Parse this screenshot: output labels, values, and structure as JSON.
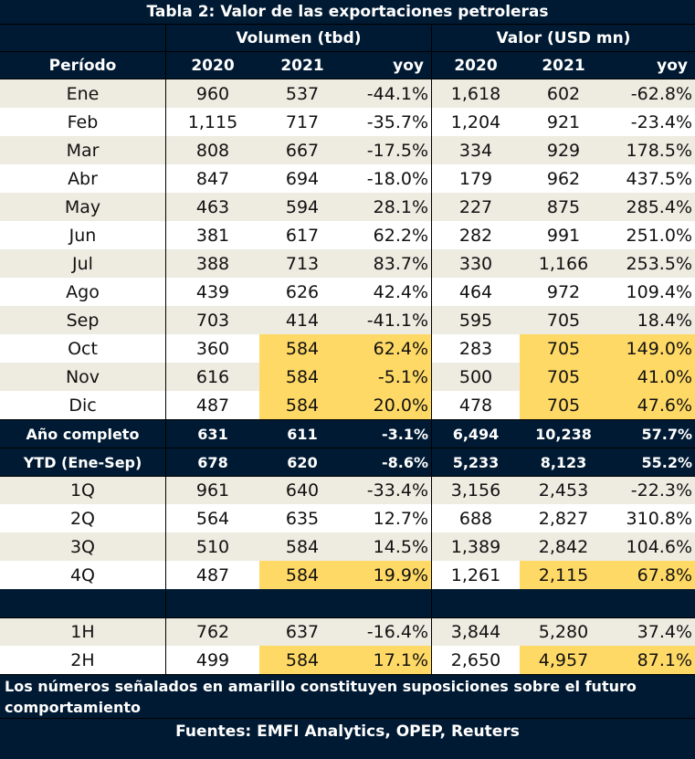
{
  "title": "Tabla 2: Valor de las exportaciones petroleras",
  "group_headers": {
    "volumen": "Volumen (tbd)",
    "valor": "Valor (USD mn)"
  },
  "column_headers": [
    "Período",
    "2020",
    "2021",
    "yoy",
    "2020",
    "2021",
    "yoy"
  ],
  "colors": {
    "header_bg": "#001a33",
    "stripe_bg": "#eeebe1",
    "highlight_yellow": "#ffd966"
  },
  "monthly_rows": [
    {
      "periodo": "Ene",
      "v2020": "960",
      "v2021": "537",
      "vyoy": "-44.1%",
      "p2020": "1,618",
      "p2021": "602",
      "pyoy": "-62.8%",
      "projected": false
    },
    {
      "periodo": "Feb",
      "v2020": "1,115",
      "v2021": "717",
      "vyoy": "-35.7%",
      "p2020": "1,204",
      "p2021": "921",
      "pyoy": "-23.4%",
      "projected": false
    },
    {
      "periodo": "Mar",
      "v2020": "808",
      "v2021": "667",
      "vyoy": "-17.5%",
      "p2020": "334",
      "p2021": "929",
      "pyoy": "178.5%",
      "projected": false
    },
    {
      "periodo": "Abr",
      "v2020": "847",
      "v2021": "694",
      "vyoy": "-18.0%",
      "p2020": "179",
      "p2021": "962",
      "pyoy": "437.5%",
      "projected": false
    },
    {
      "periodo": "May",
      "v2020": "463",
      "v2021": "594",
      "vyoy": "28.1%",
      "p2020": "227",
      "p2021": "875",
      "pyoy": "285.4%",
      "projected": false
    },
    {
      "periodo": "Jun",
      "v2020": "381",
      "v2021": "617",
      "vyoy": "62.2%",
      "p2020": "282",
      "p2021": "991",
      "pyoy": "251.0%",
      "projected": false
    },
    {
      "periodo": "Jul",
      "v2020": "388",
      "v2021": "713",
      "vyoy": "83.7%",
      "p2020": "330",
      "p2021": "1,166",
      "pyoy": "253.5%",
      "projected": false
    },
    {
      "periodo": "Ago",
      "v2020": "439",
      "v2021": "626",
      "vyoy": "42.4%",
      "p2020": "464",
      "p2021": "972",
      "pyoy": "109.4%",
      "projected": false
    },
    {
      "periodo": "Sep",
      "v2020": "703",
      "v2021": "414",
      "vyoy": "-41.1%",
      "p2020": "595",
      "p2021": "705",
      "pyoy": "18.4%",
      "projected": false
    },
    {
      "periodo": "Oct",
      "v2020": "360",
      "v2021": "584",
      "vyoy": "62.4%",
      "p2020": "283",
      "p2021": "705",
      "pyoy": "149.0%",
      "projected": true
    },
    {
      "periodo": "Nov",
      "v2020": "616",
      "v2021": "584",
      "vyoy": "-5.1%",
      "p2020": "500",
      "p2021": "705",
      "pyoy": "41.0%",
      "projected": true
    },
    {
      "periodo": "Dic",
      "v2020": "487",
      "v2021": "584",
      "vyoy": "20.0%",
      "p2020": "478",
      "p2021": "705",
      "pyoy": "47.6%",
      "projected": true
    }
  ],
  "summary_rows": [
    {
      "periodo": "Año completo",
      "v2020": "631",
      "v2021": "611",
      "vyoy": "-3.1%",
      "p2020": "6,494",
      "p2021": "10,238",
      "pyoy": "57.7%"
    },
    {
      "periodo": "YTD (Ene-Sep)",
      "v2020": "678",
      "v2021": "620",
      "vyoy": "-8.6%",
      "p2020": "5,233",
      "p2021": "8,123",
      "pyoy": "55.2%"
    }
  ],
  "quarter_rows": [
    {
      "periodo": "1Q",
      "v2020": "961",
      "v2021": "640",
      "vyoy": "-33.4%",
      "p2020": "3,156",
      "p2021": "2,453",
      "pyoy": "-22.3%",
      "projected": false
    },
    {
      "periodo": "2Q",
      "v2020": "564",
      "v2021": "635",
      "vyoy": "12.7%",
      "p2020": "688",
      "p2021": "2,827",
      "pyoy": "310.8%",
      "projected": false
    },
    {
      "periodo": "3Q",
      "v2020": "510",
      "v2021": "584",
      "vyoy": "14.5%",
      "p2020": "1,389",
      "p2021": "2,842",
      "pyoy": "104.6%",
      "projected": false
    },
    {
      "periodo": "4Q",
      "v2020": "487",
      "v2021": "584",
      "vyoy": "19.9%",
      "p2020": "1,261",
      "p2021": "2,115",
      "pyoy": "67.8%",
      "projected": true
    }
  ],
  "half_rows": [
    {
      "periodo": "1H",
      "v2020": "762",
      "v2021": "637",
      "vyoy": "-16.4%",
      "p2020": "3,844",
      "p2021": "5,280",
      "pyoy": "37.4%",
      "projected": false
    },
    {
      "periodo": "2H",
      "v2020": "499",
      "v2021": "584",
      "vyoy": "17.1%",
      "p2020": "2,650",
      "p2021": "4,957",
      "pyoy": "87.1%",
      "projected": true
    }
  ],
  "footnote": "Los números señalados en amarillo constituyen suposiciones sobre el futuro comportamiento",
  "sources": "Fuentes: EMFI Analytics, OPEP, Reuters"
}
